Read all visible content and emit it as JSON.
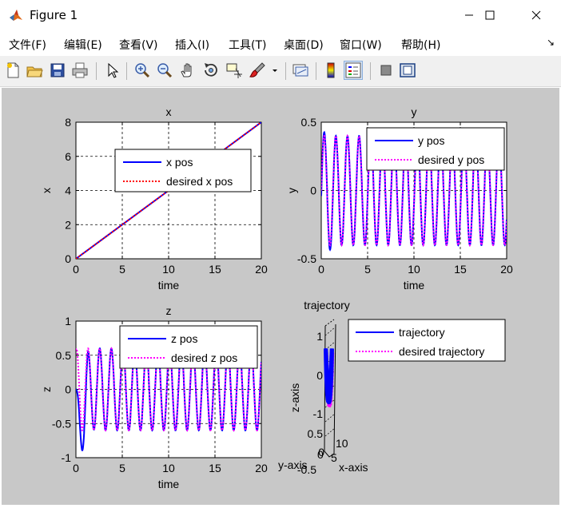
{
  "window": {
    "title": "Figure 1"
  },
  "menu": [
    "文件(F)",
    "编辑(E)",
    "查看(V)",
    "插入(I)",
    "工具(T)",
    "桌面(D)",
    "窗口(W)",
    "帮助(H)"
  ],
  "toolbar": {
    "icons": [
      "new-figure-icon",
      "open-file-icon",
      "save-icon",
      "print-icon",
      "pointer-icon",
      "zoom-in-icon",
      "zoom-out-icon",
      "pan-hand-icon",
      "rotate-3d-icon",
      "data-cursor-icon",
      "brush-icon",
      "brush-dropdown-icon",
      "link-plot-icon",
      "colorbar-icon",
      "legend-icon",
      "hide-plot-tools-icon",
      "show-plot-tools-icon"
    ]
  },
  "colors": {
    "actual": "#0000ff",
    "desired": "#ff00ff",
    "desired_x": "#ff0000",
    "figure_bg": "#c8c8c8"
  },
  "chart_data": [
    {
      "type": "line",
      "title": "x",
      "xlabel": "time",
      "ylabel": "x",
      "xlim": [
        0,
        20
      ],
      "ylim": [
        0,
        8
      ],
      "xticks": [
        "0",
        "5",
        "10",
        "15",
        "20"
      ],
      "yticks": [
        "0",
        "2",
        "4",
        "6",
        "8"
      ],
      "grid": true,
      "legend_location": "center",
      "series": [
        {
          "name": "x pos",
          "x": [
            0,
            20
          ],
          "y": [
            0,
            8
          ]
        },
        {
          "name": "desired x pos",
          "x": [
            0,
            20
          ],
          "y": [
            0,
            8
          ]
        }
      ]
    },
    {
      "type": "line",
      "title": "y",
      "xlabel": "time",
      "ylabel": "y",
      "xlim": [
        0,
        20
      ],
      "ylim": [
        -0.5,
        0.5
      ],
      "xticks": [
        "0",
        "5",
        "10",
        "15",
        "20"
      ],
      "yticks": [
        "-0.5",
        "0",
        "0.5"
      ],
      "grid": true,
      "legend_location": "top-right",
      "series": [
        {
          "name": "y pos",
          "amplitude": 0.4,
          "period": 1.257
        },
        {
          "name": "desired y pos",
          "amplitude": 0.4,
          "period": 1.257
        }
      ]
    },
    {
      "type": "line",
      "title": "z",
      "xlabel": "time",
      "ylabel": "z",
      "xlim": [
        0,
        20
      ],
      "ylim": [
        -1,
        1
      ],
      "xticks": [
        "0",
        "5",
        "10",
        "15",
        "20"
      ],
      "yticks": [
        "-1",
        "-0.5",
        "0",
        "0.5",
        "1"
      ],
      "grid": true,
      "legend_location": "top-right",
      "series": [
        {
          "name": "z pos",
          "amplitude": 0.6,
          "period": 1.257
        },
        {
          "name": "desired z pos",
          "amplitude": 0.6,
          "period": 1.257
        }
      ]
    },
    {
      "type": "line3d",
      "title": "trajectory",
      "xlabel": "x-axis",
      "ylabel": "y-axis",
      "zlabel": "z-axis",
      "zticks": [
        "-1",
        "0",
        "1"
      ],
      "yticks": [
        "-0.5",
        "0",
        "0.5"
      ],
      "xticks": [
        "0",
        "5",
        "10"
      ],
      "legend_location": "top-right",
      "series": [
        {
          "name": "trajectory"
        },
        {
          "name": "desired trajectory"
        }
      ]
    }
  ]
}
